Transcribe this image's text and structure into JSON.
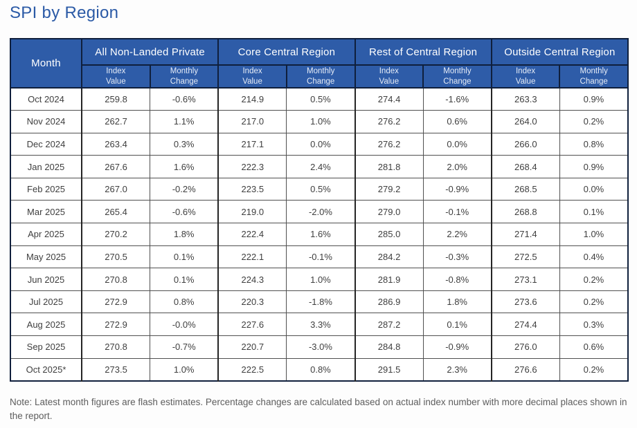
{
  "title": "SPI by Region",
  "colors": {
    "header_blue": "#2E5CA8",
    "title_blue": "#2B5AA6",
    "border_navy": "#0F1F3C"
  },
  "table": {
    "month_header": "Month",
    "groups": [
      {
        "label": "All Non-Landed Private"
      },
      {
        "label": "Core Central Region"
      },
      {
        "label": "Rest of Central Region"
      },
      {
        "label": "Outside Central Region"
      }
    ],
    "subheaders": {
      "index_value": "Index\nValue",
      "monthly_change": "Monthly\nChange"
    }
  },
  "chart_data": {
    "type": "table",
    "title": "SPI by Region",
    "columns": [
      "Month",
      "All Non-Landed Private Index Value",
      "All Non-Landed Private Monthly Change",
      "Core Central Region Index Value",
      "Core Central Region Monthly Change",
      "Rest of Central Region Index Value",
      "Rest of Central Region Monthly Change",
      "Outside Central Region Index Value",
      "Outside Central Region Monthly Change"
    ],
    "rows": [
      [
        "Oct 2024",
        "259.8",
        "-0.6%",
        "214.9",
        "0.5%",
        "274.4",
        "-1.6%",
        "263.3",
        "0.9%"
      ],
      [
        "Nov 2024",
        "262.7",
        "1.1%",
        "217.0",
        "1.0%",
        "276.2",
        "0.6%",
        "264.0",
        "0.2%"
      ],
      [
        "Dec 2024",
        "263.4",
        "0.3%",
        "217.1",
        "0.0%",
        "276.2",
        "0.0%",
        "266.0",
        "0.8%"
      ],
      [
        "Jan 2025",
        "267.6",
        "1.6%",
        "222.3",
        "2.4%",
        "281.8",
        "2.0%",
        "268.4",
        "0.9%"
      ],
      [
        "Feb 2025",
        "267.0",
        "-0.2%",
        "223.5",
        "0.5%",
        "279.2",
        "-0.9%",
        "268.5",
        "0.0%"
      ],
      [
        "Mar 2025",
        "265.4",
        "-0.6%",
        "219.0",
        "-2.0%",
        "279.0",
        "-0.1%",
        "268.8",
        "0.1%"
      ],
      [
        "Apr 2025",
        "270.2",
        "1.8%",
        "222.4",
        "1.6%",
        "285.0",
        "2.2%",
        "271.4",
        "1.0%"
      ],
      [
        "May 2025",
        "270.5",
        "0.1%",
        "222.1",
        "-0.1%",
        "284.2",
        "-0.3%",
        "272.5",
        "0.4%"
      ],
      [
        "Jun 2025",
        "270.8",
        "0.1%",
        "224.3",
        "1.0%",
        "281.9",
        "-0.8%",
        "273.1",
        "0.2%"
      ],
      [
        "Jul 2025",
        "272.9",
        "0.8%",
        "220.3",
        "-1.8%",
        "286.9",
        "1.8%",
        "273.6",
        "0.2%"
      ],
      [
        "Aug 2025",
        "272.9",
        "-0.0%",
        "227.6",
        "3.3%",
        "287.2",
        "0.1%",
        "274.4",
        "0.3%"
      ],
      [
        "Sep 2025",
        "270.8",
        "-0.7%",
        "220.7",
        "-3.0%",
        "284.8",
        "-0.9%",
        "276.0",
        "0.6%"
      ],
      [
        "Oct 2025*",
        "273.5",
        "1.0%",
        "222.5",
        "0.8%",
        "291.5",
        "2.3%",
        "276.6",
        "0.2%"
      ]
    ]
  },
  "note": "Note: Latest month figures are flash estimates. Percentage changes are calculated based on actual index number with more decimal places shown in the report."
}
